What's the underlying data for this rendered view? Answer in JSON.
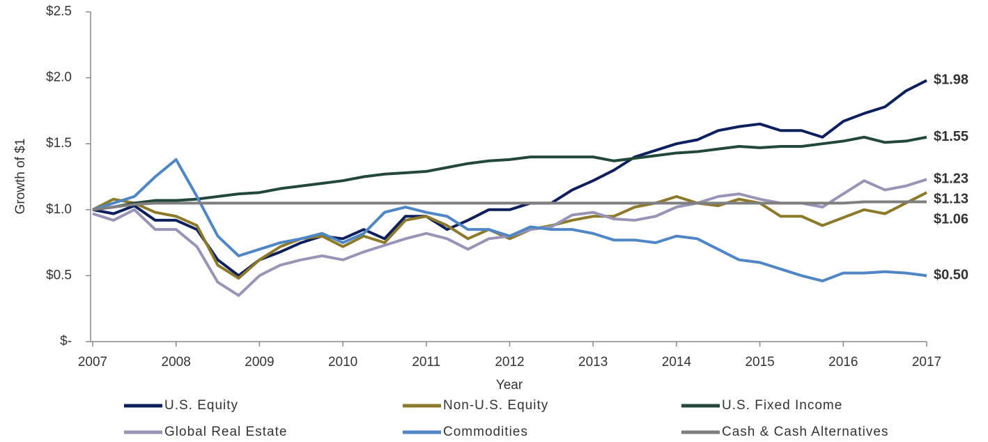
{
  "chart_data": {
    "type": "line",
    "y_label": "Growth of $1",
    "x_label": "Year",
    "x": [
      2007,
      2007.25,
      2007.5,
      2007.75,
      2008,
      2008.25,
      2008.5,
      2008.75,
      2009,
      2009.25,
      2009.5,
      2009.75,
      2010,
      2010.25,
      2010.5,
      2010.75,
      2011,
      2011.25,
      2011.5,
      2011.75,
      2012,
      2012.25,
      2012.5,
      2012.75,
      2013,
      2013.25,
      2013.5,
      2013.75,
      2014,
      2014.25,
      2014.5,
      2014.75,
      2015,
      2015.25,
      2015.5,
      2015.75,
      2016,
      2016.25,
      2016.5,
      2016.75,
      2017
    ],
    "series": [
      {
        "name": "U.S. Equity",
        "color": "#0d1f5c",
        "end_label": "$1.98",
        "values": [
          1.0,
          0.97,
          1.03,
          0.92,
          0.92,
          0.85,
          0.62,
          0.5,
          0.62,
          0.68,
          0.75,
          0.8,
          0.78,
          0.85,
          0.78,
          0.95,
          0.95,
          0.85,
          0.92,
          1.0,
          1.0,
          1.05,
          1.05,
          1.15,
          1.22,
          1.3,
          1.4,
          1.45,
          1.5,
          1.53,
          1.6,
          1.63,
          1.65,
          1.6,
          1.6,
          1.55,
          1.67,
          1.73,
          1.78,
          1.9,
          1.98
        ]
      },
      {
        "name": "Non-U.S. Equity",
        "color": "#8c7a2a",
        "end_label": "$1.13",
        "values": [
          1.0,
          1.08,
          1.05,
          0.98,
          0.95,
          0.88,
          0.58,
          0.48,
          0.62,
          0.72,
          0.78,
          0.8,
          0.72,
          0.8,
          0.75,
          0.92,
          0.95,
          0.88,
          0.78,
          0.85,
          0.78,
          0.85,
          0.88,
          0.92,
          0.95,
          0.95,
          1.02,
          1.05,
          1.1,
          1.05,
          1.03,
          1.08,
          1.05,
          0.95,
          0.95,
          0.88,
          0.94,
          1.0,
          0.97,
          1.05,
          1.13
        ]
      },
      {
        "name": "U.S. Fixed Income",
        "color": "#23483a",
        "end_label": "$1.55",
        "values": [
          1.0,
          1.02,
          1.05,
          1.07,
          1.07,
          1.08,
          1.1,
          1.12,
          1.13,
          1.16,
          1.18,
          1.2,
          1.22,
          1.25,
          1.27,
          1.28,
          1.29,
          1.32,
          1.35,
          1.37,
          1.38,
          1.4,
          1.4,
          1.4,
          1.4,
          1.37,
          1.39,
          1.41,
          1.43,
          1.44,
          1.46,
          1.48,
          1.47,
          1.48,
          1.48,
          1.5,
          1.52,
          1.55,
          1.51,
          1.52,
          1.55
        ]
      },
      {
        "name": "Global Real Estate",
        "color": "#9b93b5",
        "end_label": "$1.23",
        "values": [
          0.97,
          0.92,
          1.0,
          0.85,
          0.85,
          0.72,
          0.45,
          0.35,
          0.5,
          0.58,
          0.62,
          0.65,
          0.62,
          0.68,
          0.73,
          0.78,
          0.82,
          0.78,
          0.7,
          0.78,
          0.8,
          0.85,
          0.87,
          0.96,
          0.98,
          0.93,
          0.92,
          0.95,
          1.02,
          1.05,
          1.1,
          1.12,
          1.08,
          1.05,
          1.05,
          1.02,
          1.12,
          1.22,
          1.15,
          1.18,
          1.23
        ]
      },
      {
        "name": "Commodities",
        "color": "#4f86c6",
        "end_label": "$0.50",
        "values": [
          1.0,
          1.05,
          1.1,
          1.25,
          1.38,
          1.1,
          0.8,
          0.65,
          0.7,
          0.75,
          0.78,
          0.82,
          0.75,
          0.82,
          0.98,
          1.02,
          0.98,
          0.95,
          0.85,
          0.85,
          0.8,
          0.87,
          0.85,
          0.85,
          0.82,
          0.77,
          0.77,
          0.75,
          0.8,
          0.78,
          0.7,
          0.62,
          0.6,
          0.55,
          0.5,
          0.46,
          0.52,
          0.52,
          0.53,
          0.52,
          0.5
        ]
      },
      {
        "name": "Cash & Cash Alternatives",
        "color": "#7f7f7f",
        "end_label": "$1.06",
        "values": [
          1.0,
          1.02,
          1.04,
          1.05,
          1.05,
          1.05,
          1.05,
          1.05,
          1.05,
          1.05,
          1.05,
          1.05,
          1.05,
          1.05,
          1.05,
          1.05,
          1.05,
          1.05,
          1.05,
          1.05,
          1.05,
          1.05,
          1.05,
          1.05,
          1.05,
          1.05,
          1.05,
          1.05,
          1.05,
          1.05,
          1.05,
          1.05,
          1.05,
          1.05,
          1.05,
          1.05,
          1.05,
          1.06,
          1.06,
          1.06,
          1.06
        ]
      }
    ],
    "xlim": [
      2007,
      2017
    ],
    "xticks": [
      2007,
      2008,
      2009,
      2010,
      2011,
      2012,
      2013,
      2014,
      2015,
      2016,
      2017
    ],
    "ylim": [
      0,
      2.5
    ],
    "yticks": [
      {
        "value": 0,
        "label": "$-"
      },
      {
        "value": 0.5,
        "label": "$0.5"
      },
      {
        "value": 1,
        "label": "$1.0"
      },
      {
        "value": 1.5,
        "label": "$1.5"
      },
      {
        "value": 2,
        "label": "$2.0"
      },
      {
        "value": 2.5,
        "label": "$2.5"
      }
    ],
    "grid": false,
    "legend": "bottom"
  }
}
